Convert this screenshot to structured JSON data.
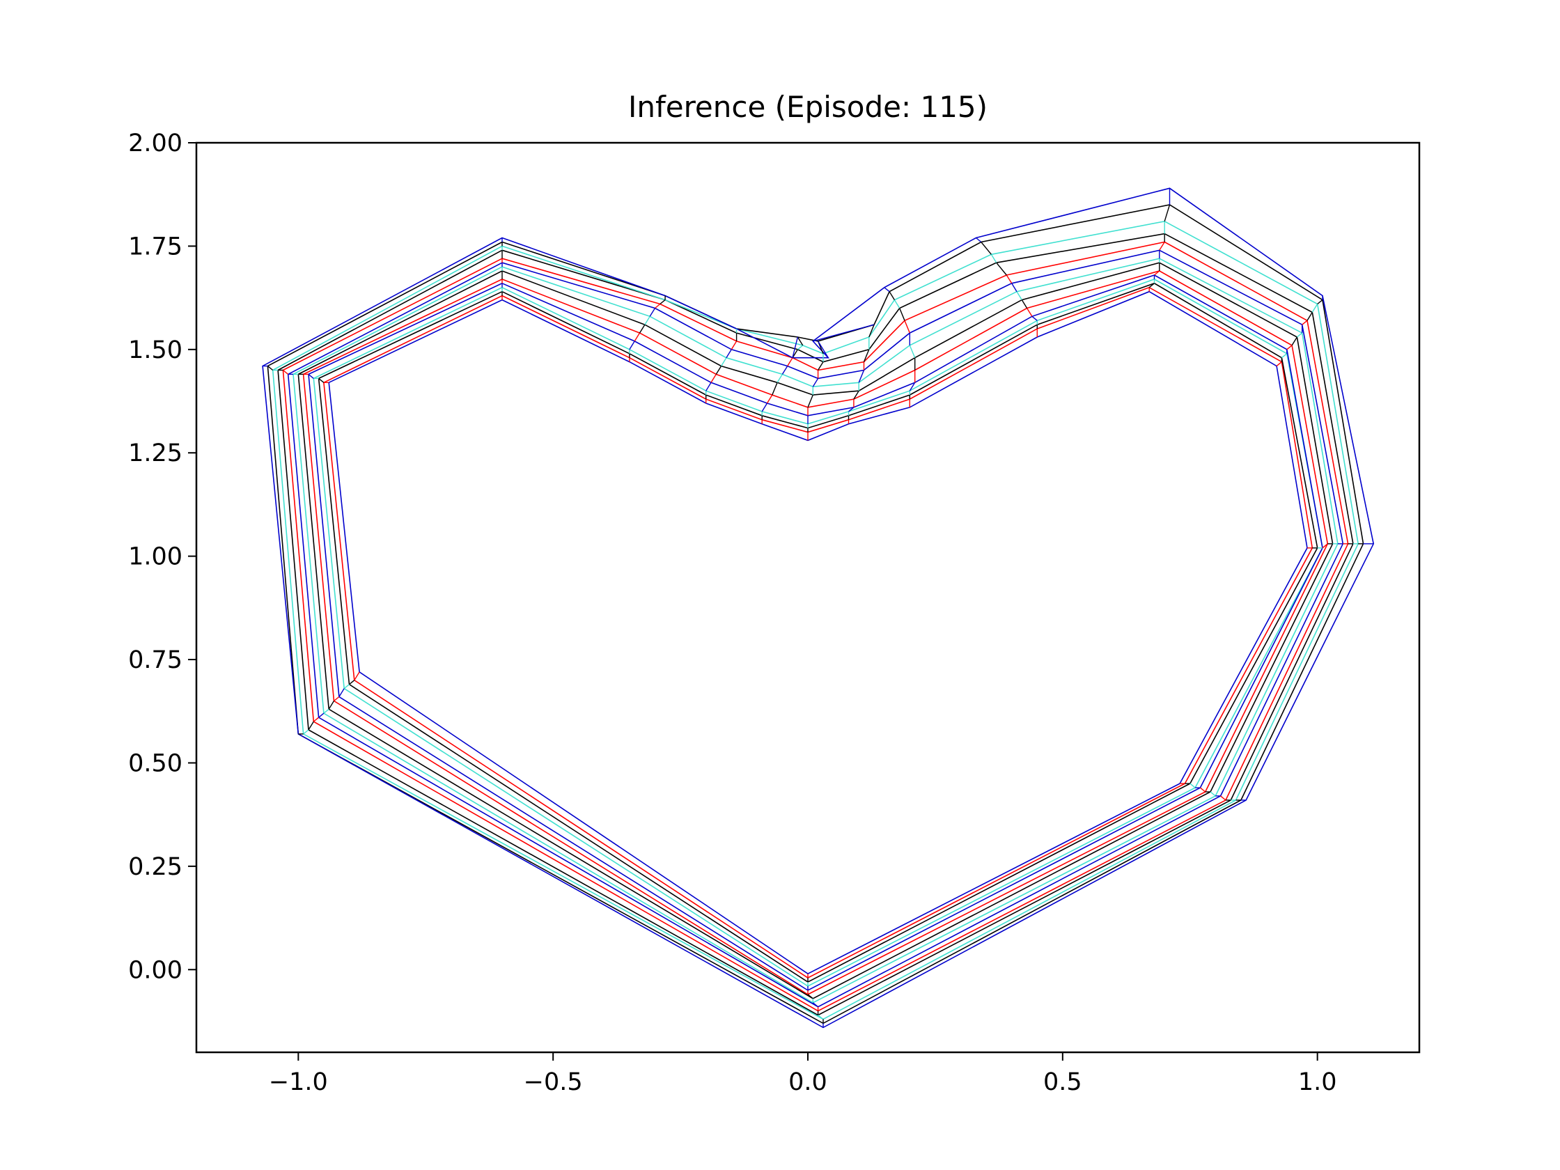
{
  "chart_data": {
    "type": "line",
    "title": "Inference (Episode: 115)",
    "xlabel": "",
    "ylabel": "",
    "xlim": [
      -1.2,
      1.2
    ],
    "ylim": [
      -0.2,
      2.0
    ],
    "xticks": [
      -1.0,
      -0.5,
      0.0,
      0.5,
      1.0
    ],
    "xtick_labels": [
      "−1.0",
      "−0.5",
      "0.0",
      "0.5",
      "1.0"
    ],
    "yticks": [
      0.0,
      0.25,
      0.5,
      0.75,
      1.0,
      1.25,
      1.5,
      1.75,
      2.0
    ],
    "ytick_labels": [
      "0.00",
      "0.25",
      "0.50",
      "0.75",
      "1.00",
      "1.25",
      "1.50",
      "1.75",
      "2.00"
    ],
    "grid": false,
    "legend": "none",
    "series": [
      {
        "color": "#0000cc",
        "values": [
          [
            -0.6,
            1.62
          ],
          [
            -0.35,
            1.47
          ],
          [
            -0.2,
            1.37
          ],
          [
            -0.09,
            1.32
          ],
          [
            0.0,
            1.28
          ],
          [
            0.08,
            1.32
          ],
          [
            0.2,
            1.36
          ],
          [
            0.45,
            1.53
          ],
          [
            0.67,
            1.64
          ],
          [
            0.92,
            1.46
          ],
          [
            0.98,
            1.02
          ],
          [
            0.73,
            0.45
          ],
          [
            0.0,
            -0.01
          ],
          [
            -0.88,
            0.72
          ],
          [
            -0.94,
            1.42
          ]
        ]
      },
      {
        "color": "#ff0000",
        "values": [
          [
            -0.6,
            1.63
          ],
          [
            -0.35,
            1.48
          ],
          [
            -0.2,
            1.38
          ],
          [
            -0.09,
            1.33
          ],
          [
            0.0,
            1.3
          ],
          [
            0.08,
            1.33
          ],
          [
            0.2,
            1.38
          ],
          [
            0.45,
            1.55
          ],
          [
            0.67,
            1.65
          ],
          [
            0.93,
            1.47
          ],
          [
            0.99,
            1.02
          ],
          [
            0.74,
            0.45
          ],
          [
            0.0,
            -0.02
          ],
          [
            -0.89,
            0.7
          ],
          [
            -0.95,
            1.42
          ]
        ]
      },
      {
        "color": "#000000",
        "values": [
          [
            -0.6,
            1.64
          ],
          [
            -0.35,
            1.49
          ],
          [
            -0.2,
            1.39
          ],
          [
            -0.09,
            1.34
          ],
          [
            0.0,
            1.31
          ],
          [
            0.08,
            1.34
          ],
          [
            0.2,
            1.39
          ],
          [
            0.45,
            1.56
          ],
          [
            0.68,
            1.66
          ],
          [
            0.93,
            1.48
          ],
          [
            1.0,
            1.02
          ],
          [
            0.75,
            0.45
          ],
          [
            0.0,
            -0.03
          ],
          [
            -0.9,
            0.69
          ],
          [
            -0.96,
            1.43
          ]
        ]
      },
      {
        "color": "#40e0d0",
        "values": [
          [
            -0.6,
            1.65
          ],
          [
            -0.35,
            1.5
          ],
          [
            -0.2,
            1.4
          ],
          [
            -0.09,
            1.35
          ],
          [
            0.0,
            1.32
          ],
          [
            0.08,
            1.35
          ],
          [
            0.2,
            1.4
          ],
          [
            0.45,
            1.57
          ],
          [
            0.68,
            1.67
          ],
          [
            0.94,
            1.49
          ],
          [
            1.01,
            1.02
          ],
          [
            0.76,
            0.44
          ],
          [
            0.0,
            -0.04
          ],
          [
            -0.91,
            0.68
          ],
          [
            -0.97,
            1.43
          ]
        ]
      },
      {
        "color": "#0000cc",
        "values": [
          [
            -0.6,
            1.66
          ],
          [
            -0.34,
            1.52
          ],
          [
            -0.19,
            1.42
          ],
          [
            -0.08,
            1.37
          ],
          [
            0.0,
            1.34
          ],
          [
            0.09,
            1.36
          ],
          [
            0.21,
            1.42
          ],
          [
            0.44,
            1.58
          ],
          [
            0.68,
            1.68
          ],
          [
            0.94,
            1.5
          ],
          [
            1.01,
            1.02
          ],
          [
            0.77,
            0.44
          ],
          [
            0.0,
            -0.05
          ],
          [
            -0.92,
            0.66
          ],
          [
            -0.98,
            1.44
          ]
        ]
      },
      {
        "color": "#ff0000",
        "values": [
          [
            -0.6,
            1.67
          ],
          [
            -0.33,
            1.54
          ],
          [
            -0.18,
            1.44
          ],
          [
            -0.07,
            1.39
          ],
          [
            0.0,
            1.36
          ],
          [
            0.09,
            1.38
          ],
          [
            0.21,
            1.45
          ],
          [
            0.43,
            1.6
          ],
          [
            0.69,
            1.69
          ],
          [
            0.95,
            1.51
          ],
          [
            1.02,
            1.03
          ],
          [
            0.78,
            0.43
          ],
          [
            0.0,
            -0.06
          ],
          [
            -0.93,
            0.65
          ],
          [
            -0.99,
            1.44
          ]
        ]
      },
      {
        "color": "#000000",
        "values": [
          [
            -0.6,
            1.69
          ],
          [
            -0.32,
            1.56
          ],
          [
            -0.17,
            1.46
          ],
          [
            -0.06,
            1.42
          ],
          [
            0.01,
            1.39
          ],
          [
            0.1,
            1.4
          ],
          [
            0.21,
            1.48
          ],
          [
            0.42,
            1.62
          ],
          [
            0.69,
            1.71
          ],
          [
            0.96,
            1.53
          ],
          [
            1.03,
            1.03
          ],
          [
            0.79,
            0.43
          ],
          [
            0.01,
            -0.07
          ],
          [
            -0.94,
            0.63
          ],
          [
            -1.0,
            1.44
          ]
        ]
      },
      {
        "color": "#40e0d0",
        "values": [
          [
            -0.6,
            1.7
          ],
          [
            -0.31,
            1.58
          ],
          [
            -0.16,
            1.48
          ],
          [
            -0.05,
            1.44
          ],
          [
            0.01,
            1.41
          ],
          [
            0.1,
            1.42
          ],
          [
            0.2,
            1.51
          ],
          [
            0.41,
            1.64
          ],
          [
            0.69,
            1.72
          ],
          [
            0.97,
            1.54
          ],
          [
            1.04,
            1.03
          ],
          [
            0.8,
            0.42
          ],
          [
            0.01,
            -0.08
          ],
          [
            -0.95,
            0.62
          ],
          [
            -1.01,
            1.44
          ]
        ]
      },
      {
        "color": "#0000cc",
        "values": [
          [
            -0.6,
            1.71
          ],
          [
            -0.3,
            1.6
          ],
          [
            -0.15,
            1.5
          ],
          [
            -0.04,
            1.46
          ],
          [
            0.02,
            1.43
          ],
          [
            0.11,
            1.45
          ],
          [
            0.2,
            1.54
          ],
          [
            0.4,
            1.66
          ],
          [
            0.69,
            1.74
          ],
          [
            0.97,
            1.56
          ],
          [
            1.05,
            1.03
          ],
          [
            0.81,
            0.42
          ],
          [
            0.02,
            -0.09
          ],
          [
            -0.96,
            0.61
          ],
          [
            -1.02,
            1.44
          ]
        ]
      },
      {
        "color": "#ff0000",
        "values": [
          [
            -0.6,
            1.72
          ],
          [
            -0.29,
            1.61
          ],
          [
            -0.14,
            1.52
          ],
          [
            -0.03,
            1.48
          ],
          [
            0.02,
            1.45
          ],
          [
            0.11,
            1.47
          ],
          [
            0.19,
            1.57
          ],
          [
            0.39,
            1.68
          ],
          [
            0.7,
            1.76
          ],
          [
            0.98,
            1.57
          ],
          [
            1.06,
            1.03
          ],
          [
            0.82,
            0.41
          ],
          [
            0.02,
            -0.1
          ],
          [
            -0.97,
            0.6
          ],
          [
            -1.03,
            1.45
          ]
        ]
      },
      {
        "color": "#000000",
        "values": [
          [
            -0.6,
            1.74
          ],
          [
            -0.28,
            1.62
          ],
          [
            -0.14,
            1.54
          ],
          [
            -0.02,
            1.5
          ],
          [
            0.03,
            1.47
          ],
          [
            0.12,
            1.5
          ],
          [
            0.18,
            1.6
          ],
          [
            0.37,
            1.71
          ],
          [
            0.7,
            1.78
          ],
          [
            0.99,
            1.59
          ],
          [
            1.07,
            1.03
          ],
          [
            0.83,
            0.41
          ],
          [
            0.02,
            -0.11
          ],
          [
            -0.98,
            0.58
          ],
          [
            -1.04,
            1.45
          ]
        ]
      },
      {
        "color": "#40e0d0",
        "values": [
          [
            -0.6,
            1.75
          ],
          [
            -0.28,
            1.62
          ],
          [
            -0.14,
            1.55
          ],
          [
            -0.01,
            1.51
          ],
          [
            0.03,
            1.49
          ],
          [
            0.12,
            1.53
          ],
          [
            0.17,
            1.62
          ],
          [
            0.36,
            1.73
          ],
          [
            0.7,
            1.81
          ],
          [
            1.0,
            1.61
          ],
          [
            1.08,
            1.03
          ],
          [
            0.84,
            0.41
          ],
          [
            0.03,
            -0.12
          ],
          [
            -0.99,
            0.57
          ],
          [
            -1.05,
            1.45
          ]
        ]
      },
      {
        "color": "#000000",
        "values": [
          [
            -0.6,
            1.76
          ],
          [
            -0.28,
            1.63
          ],
          [
            -0.14,
            1.55
          ],
          [
            -0.02,
            1.53
          ],
          [
            0.02,
            1.52
          ],
          [
            0.13,
            1.56
          ],
          [
            0.16,
            1.64
          ],
          [
            0.34,
            1.76
          ],
          [
            0.71,
            1.85
          ],
          [
            1.01,
            1.62
          ],
          [
            1.09,
            1.03
          ],
          [
            0.85,
            0.41
          ],
          [
            0.03,
            -0.13
          ],
          [
            -1.0,
            0.57
          ],
          [
            -1.06,
            1.46
          ]
        ]
      },
      {
        "color": "#0000cc",
        "values": [
          [
            -0.6,
            1.77
          ],
          [
            -0.28,
            1.63
          ],
          [
            -0.14,
            1.55
          ],
          [
            -0.03,
            1.48
          ],
          [
            0.04,
            1.48
          ],
          [
            0.01,
            1.52
          ],
          [
            0.15,
            1.65
          ],
          [
            0.33,
            1.77
          ],
          [
            0.71,
            1.89
          ],
          [
            1.01,
            1.63
          ],
          [
            1.11,
            1.03
          ],
          [
            0.86,
            0.41
          ],
          [
            0.03,
            -0.14
          ],
          [
            -1.0,
            0.57
          ],
          [
            -1.07,
            1.46
          ]
        ]
      }
    ]
  }
}
